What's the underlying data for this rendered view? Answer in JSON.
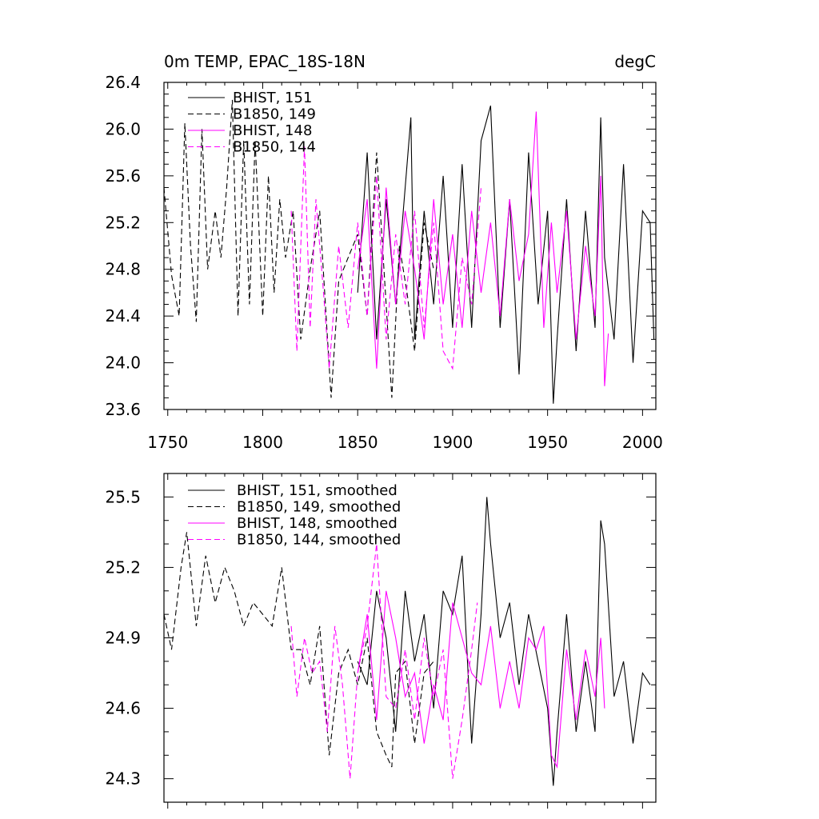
{
  "colors": {
    "black": "#000000",
    "magenta": "#ff00ff"
  },
  "chart_data": [
    {
      "type": "line",
      "title_left": "0m TEMP, EPAC_18S-18N",
      "title_right": "degC",
      "xlim": [
        1748,
        2007
      ],
      "ylim": [
        23.6,
        26.4
      ],
      "xticks": [
        1750,
        1800,
        1850,
        1900,
        1950,
        2000
      ],
      "xtick_labels": [
        "1750",
        "1800",
        "1850",
        "1900",
        "1950",
        "2000"
      ],
      "yticks": [
        23.6,
        24.0,
        24.4,
        24.8,
        25.2,
        25.6,
        26.0,
        26.4
      ],
      "ytick_labels": [
        "23.6",
        "24.0",
        "24.4",
        "24.8",
        "25.2",
        "25.6",
        "26.0",
        "26.4"
      ],
      "legend": [
        "BHIST, 151",
        "B1850, 149",
        "BHIST, 148",
        "B1850, 144"
      ],
      "series": [
        {
          "name": "BHIST, 151",
          "color": "#000000",
          "dash": "solid",
          "x": [
            1850,
            1855,
            1860,
            1865,
            1870,
            1875,
            1878,
            1880,
            1885,
            1890,
            1895,
            1900,
            1905,
            1910,
            1915,
            1920,
            1925,
            1930,
            1935,
            1940,
            1945,
            1950,
            1953,
            1955,
            1960,
            1965,
            1970,
            1975,
            1978,
            1980,
            1985,
            1990,
            1995,
            2000,
            2004,
            2006
          ],
          "values": [
            24.6,
            25.8,
            24.2,
            25.4,
            24.5,
            25.5,
            26.1,
            24.2,
            25.3,
            24.5,
            25.6,
            24.3,
            25.7,
            24.3,
            25.9,
            26.2,
            24.3,
            25.4,
            23.9,
            25.8,
            24.5,
            25.3,
            23.65,
            24.2,
            25.4,
            24.1,
            25.3,
            24.3,
            26.1,
            24.9,
            24.2,
            25.7,
            24.0,
            25.3,
            25.2,
            24.2
          ]
        },
        {
          "name": "B1850, 149",
          "color": "#000000",
          "dash": "dashed",
          "x": [
            1748,
            1752,
            1756,
            1759,
            1762,
            1765,
            1768,
            1771,
            1775,
            1778,
            1781,
            1784,
            1787,
            1790,
            1793,
            1796,
            1800,
            1803,
            1806,
            1809,
            1812,
            1816,
            1820,
            1825,
            1830,
            1836,
            1840,
            1845,
            1850,
            1855,
            1860,
            1865,
            1868,
            1872,
            1876,
            1880,
            1885,
            1890
          ],
          "values": [
            25.5,
            24.75,
            24.4,
            26.05,
            25.0,
            24.35,
            26.0,
            24.8,
            25.3,
            24.9,
            25.5,
            26.25,
            24.4,
            25.9,
            24.5,
            25.9,
            24.4,
            25.6,
            24.6,
            25.4,
            24.9,
            25.3,
            24.2,
            24.8,
            25.3,
            23.7,
            24.7,
            24.9,
            25.1,
            24.4,
            25.8,
            24.5,
            23.7,
            25.0,
            24.6,
            24.1,
            25.2,
            24.8
          ]
        },
        {
          "name": "BHIST, 148",
          "color": "#ff00ff",
          "dash": "solid",
          "x": [
            1850,
            1855,
            1860,
            1865,
            1870,
            1875,
            1880,
            1885,
            1890,
            1895,
            1900,
            1905,
            1910,
            1915,
            1920,
            1925,
            1930,
            1935,
            1940,
            1944,
            1948,
            1952,
            1955,
            1960,
            1965,
            1970,
            1975,
            1978,
            1980,
            1982
          ],
          "values": [
            24.8,
            25.4,
            23.95,
            25.5,
            24.5,
            25.3,
            24.8,
            24.2,
            25.4,
            24.5,
            25.1,
            24.3,
            25.3,
            24.6,
            25.2,
            24.4,
            25.4,
            24.7,
            25.1,
            26.15,
            24.3,
            25.2,
            24.6,
            25.3,
            24.2,
            25.0,
            24.4,
            25.6,
            23.8,
            24.25
          ]
        },
        {
          "name": "B1850, 144",
          "color": "#ff00ff",
          "dash": "dashed",
          "x": [
            1815,
            1818,
            1822,
            1825,
            1828,
            1832,
            1835,
            1840,
            1845,
            1850,
            1855,
            1860,
            1865,
            1870,
            1875,
            1880,
            1885,
            1890,
            1895,
            1900,
            1905,
            1910,
            1915
          ],
          "values": [
            25.3,
            24.1,
            25.85,
            24.3,
            25.4,
            24.6,
            23.95,
            25.0,
            24.3,
            25.2,
            24.4,
            25.6,
            24.2,
            25.1,
            24.5,
            25.3,
            24.3,
            25.2,
            24.1,
            23.95,
            24.9,
            24.5,
            25.5
          ]
        }
      ]
    },
    {
      "type": "line",
      "xlim": [
        1748,
        2007
      ],
      "ylim": [
        24.2,
        25.6
      ],
      "xticks": [
        1750,
        1800,
        1850,
        1900,
        1950,
        2000
      ],
      "yticks": [
        24.3,
        24.6,
        24.9,
        25.2,
        25.5
      ],
      "ytick_labels": [
        "24.3",
        "24.6",
        "24.9",
        "25.2",
        "25.5"
      ],
      "legend": [
        "BHIST, 151, smoothed",
        "B1850, 149, smoothed",
        "BHIST, 148, smoothed",
        "B1850, 144, smoothed"
      ],
      "series": [
        {
          "name": "BHIST, 151, smoothed",
          "color": "#000000",
          "dash": "solid",
          "x": [
            1850,
            1855,
            1860,
            1865,
            1870,
            1875,
            1880,
            1885,
            1890,
            1895,
            1900,
            1905,
            1910,
            1915,
            1918,
            1920,
            1925,
            1930,
            1935,
            1940,
            1945,
            1950,
            1953,
            1955,
            1960,
            1965,
            1970,
            1975,
            1978,
            1980,
            1985,
            1990,
            1995,
            2000,
            2004
          ],
          "values": [
            24.8,
            24.7,
            25.1,
            24.9,
            24.5,
            25.1,
            24.8,
            25.0,
            24.6,
            25.1,
            25.0,
            25.25,
            24.45,
            25.0,
            25.5,
            25.3,
            24.9,
            25.05,
            24.7,
            25.0,
            24.8,
            24.6,
            24.27,
            24.5,
            25.0,
            24.5,
            24.8,
            24.5,
            25.4,
            25.3,
            24.65,
            24.8,
            24.45,
            24.75,
            24.7
          ]
        },
        {
          "name": "B1850, 149, smoothed",
          "color": "#000000",
          "dash": "dashed",
          "x": [
            1748,
            1752,
            1757,
            1760,
            1765,
            1770,
            1775,
            1780,
            1785,
            1790,
            1795,
            1800,
            1805,
            1810,
            1815,
            1820,
            1825,
            1830,
            1835,
            1840,
            1845,
            1850,
            1855,
            1860,
            1865,
            1868,
            1870,
            1875,
            1880,
            1885,
            1890
          ],
          "values": [
            25.0,
            24.85,
            25.2,
            25.35,
            24.95,
            25.25,
            25.05,
            25.2,
            25.1,
            24.95,
            25.05,
            25.0,
            24.95,
            25.2,
            24.85,
            24.85,
            24.7,
            24.95,
            24.4,
            24.75,
            24.85,
            24.7,
            24.9,
            24.5,
            24.4,
            24.35,
            24.75,
            24.8,
            24.45,
            24.75,
            24.8
          ]
        },
        {
          "name": "BHIST, 148, smoothed",
          "color": "#ff00ff",
          "dash": "solid",
          "x": [
            1850,
            1855,
            1860,
            1865,
            1870,
            1875,
            1880,
            1885,
            1890,
            1895,
            1900,
            1905,
            1910,
            1915,
            1920,
            1925,
            1930,
            1935,
            1940,
            1944,
            1948,
            1952,
            1955,
            1960,
            1965,
            1970,
            1975,
            1978,
            1980
          ],
          "values": [
            24.75,
            25.0,
            24.55,
            25.1,
            24.9,
            24.65,
            24.75,
            24.45,
            24.7,
            24.55,
            25.05,
            24.9,
            24.75,
            24.7,
            24.95,
            24.6,
            24.8,
            24.6,
            24.9,
            24.85,
            24.95,
            24.4,
            24.35,
            24.85,
            24.55,
            24.85,
            24.65,
            24.9,
            24.6
          ]
        },
        {
          "name": "B1850, 144, smoothed",
          "color": "#ff00ff",
          "dash": "dashed",
          "x": [
            1815,
            1818,
            1822,
            1826,
            1830,
            1834,
            1838,
            1842,
            1846,
            1850,
            1855,
            1860,
            1865,
            1870,
            1875,
            1880,
            1885,
            1890,
            1895,
            1900,
            1905,
            1910,
            1913
          ],
          "values": [
            24.95,
            24.65,
            24.9,
            24.75,
            24.8,
            24.5,
            24.95,
            24.7,
            24.3,
            24.75,
            24.95,
            25.3,
            24.65,
            24.6,
            24.85,
            24.55,
            24.9,
            24.65,
            24.85,
            24.3,
            24.55,
            24.85,
            25.05
          ]
        }
      ]
    }
  ]
}
